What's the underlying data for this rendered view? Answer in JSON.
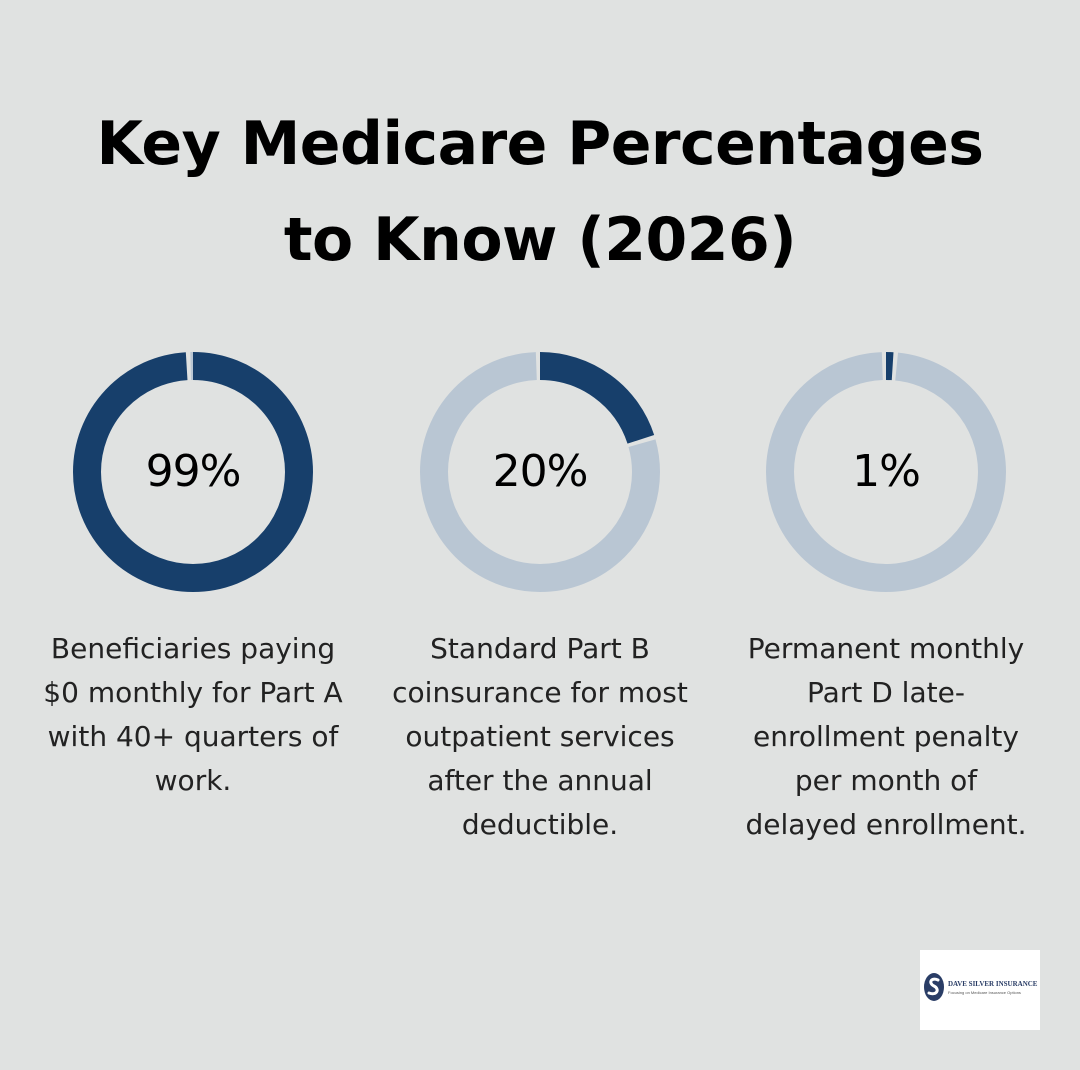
{
  "title": {
    "line1": "Key Medicare Percentages",
    "line2": "to Know (2026)"
  },
  "colors": {
    "background": "#e0e2e1",
    "donut_fill": "#173f6b",
    "donut_track": "#b9c6d3"
  },
  "chart_data": [
    {
      "type": "pie",
      "label": "99%",
      "value": 99,
      "description": "Beneficiaries paying $0 monthly for Part A with 40+ quarters of work.",
      "description_lines": [
        "Beneficiaries paying",
        "$0 monthly for Part A",
        "with 40+ quarters of",
        "work."
      ]
    },
    {
      "type": "pie",
      "label": "20%",
      "value": 20,
      "description": "Standard Part B coinsurance for most outpatient services after the annual deductible.",
      "description_lines": [
        "Standard Part B",
        "coinsurance for most",
        "outpatient services",
        "after the annual",
        "deductible."
      ]
    },
    {
      "type": "pie",
      "label": "1%",
      "value": 1,
      "description": "Permanent monthly Part D late-enrollment penalty per month of delayed enrollment.",
      "description_lines": [
        "Permanent monthly",
        "Part D late-",
        "enrollment penalty",
        "per month of",
        "delayed enrollment."
      ]
    }
  ],
  "logo": {
    "name": "DAVE SILVER INSURANCE",
    "tagline": "Focusing on Medicare Insurance Options"
  }
}
